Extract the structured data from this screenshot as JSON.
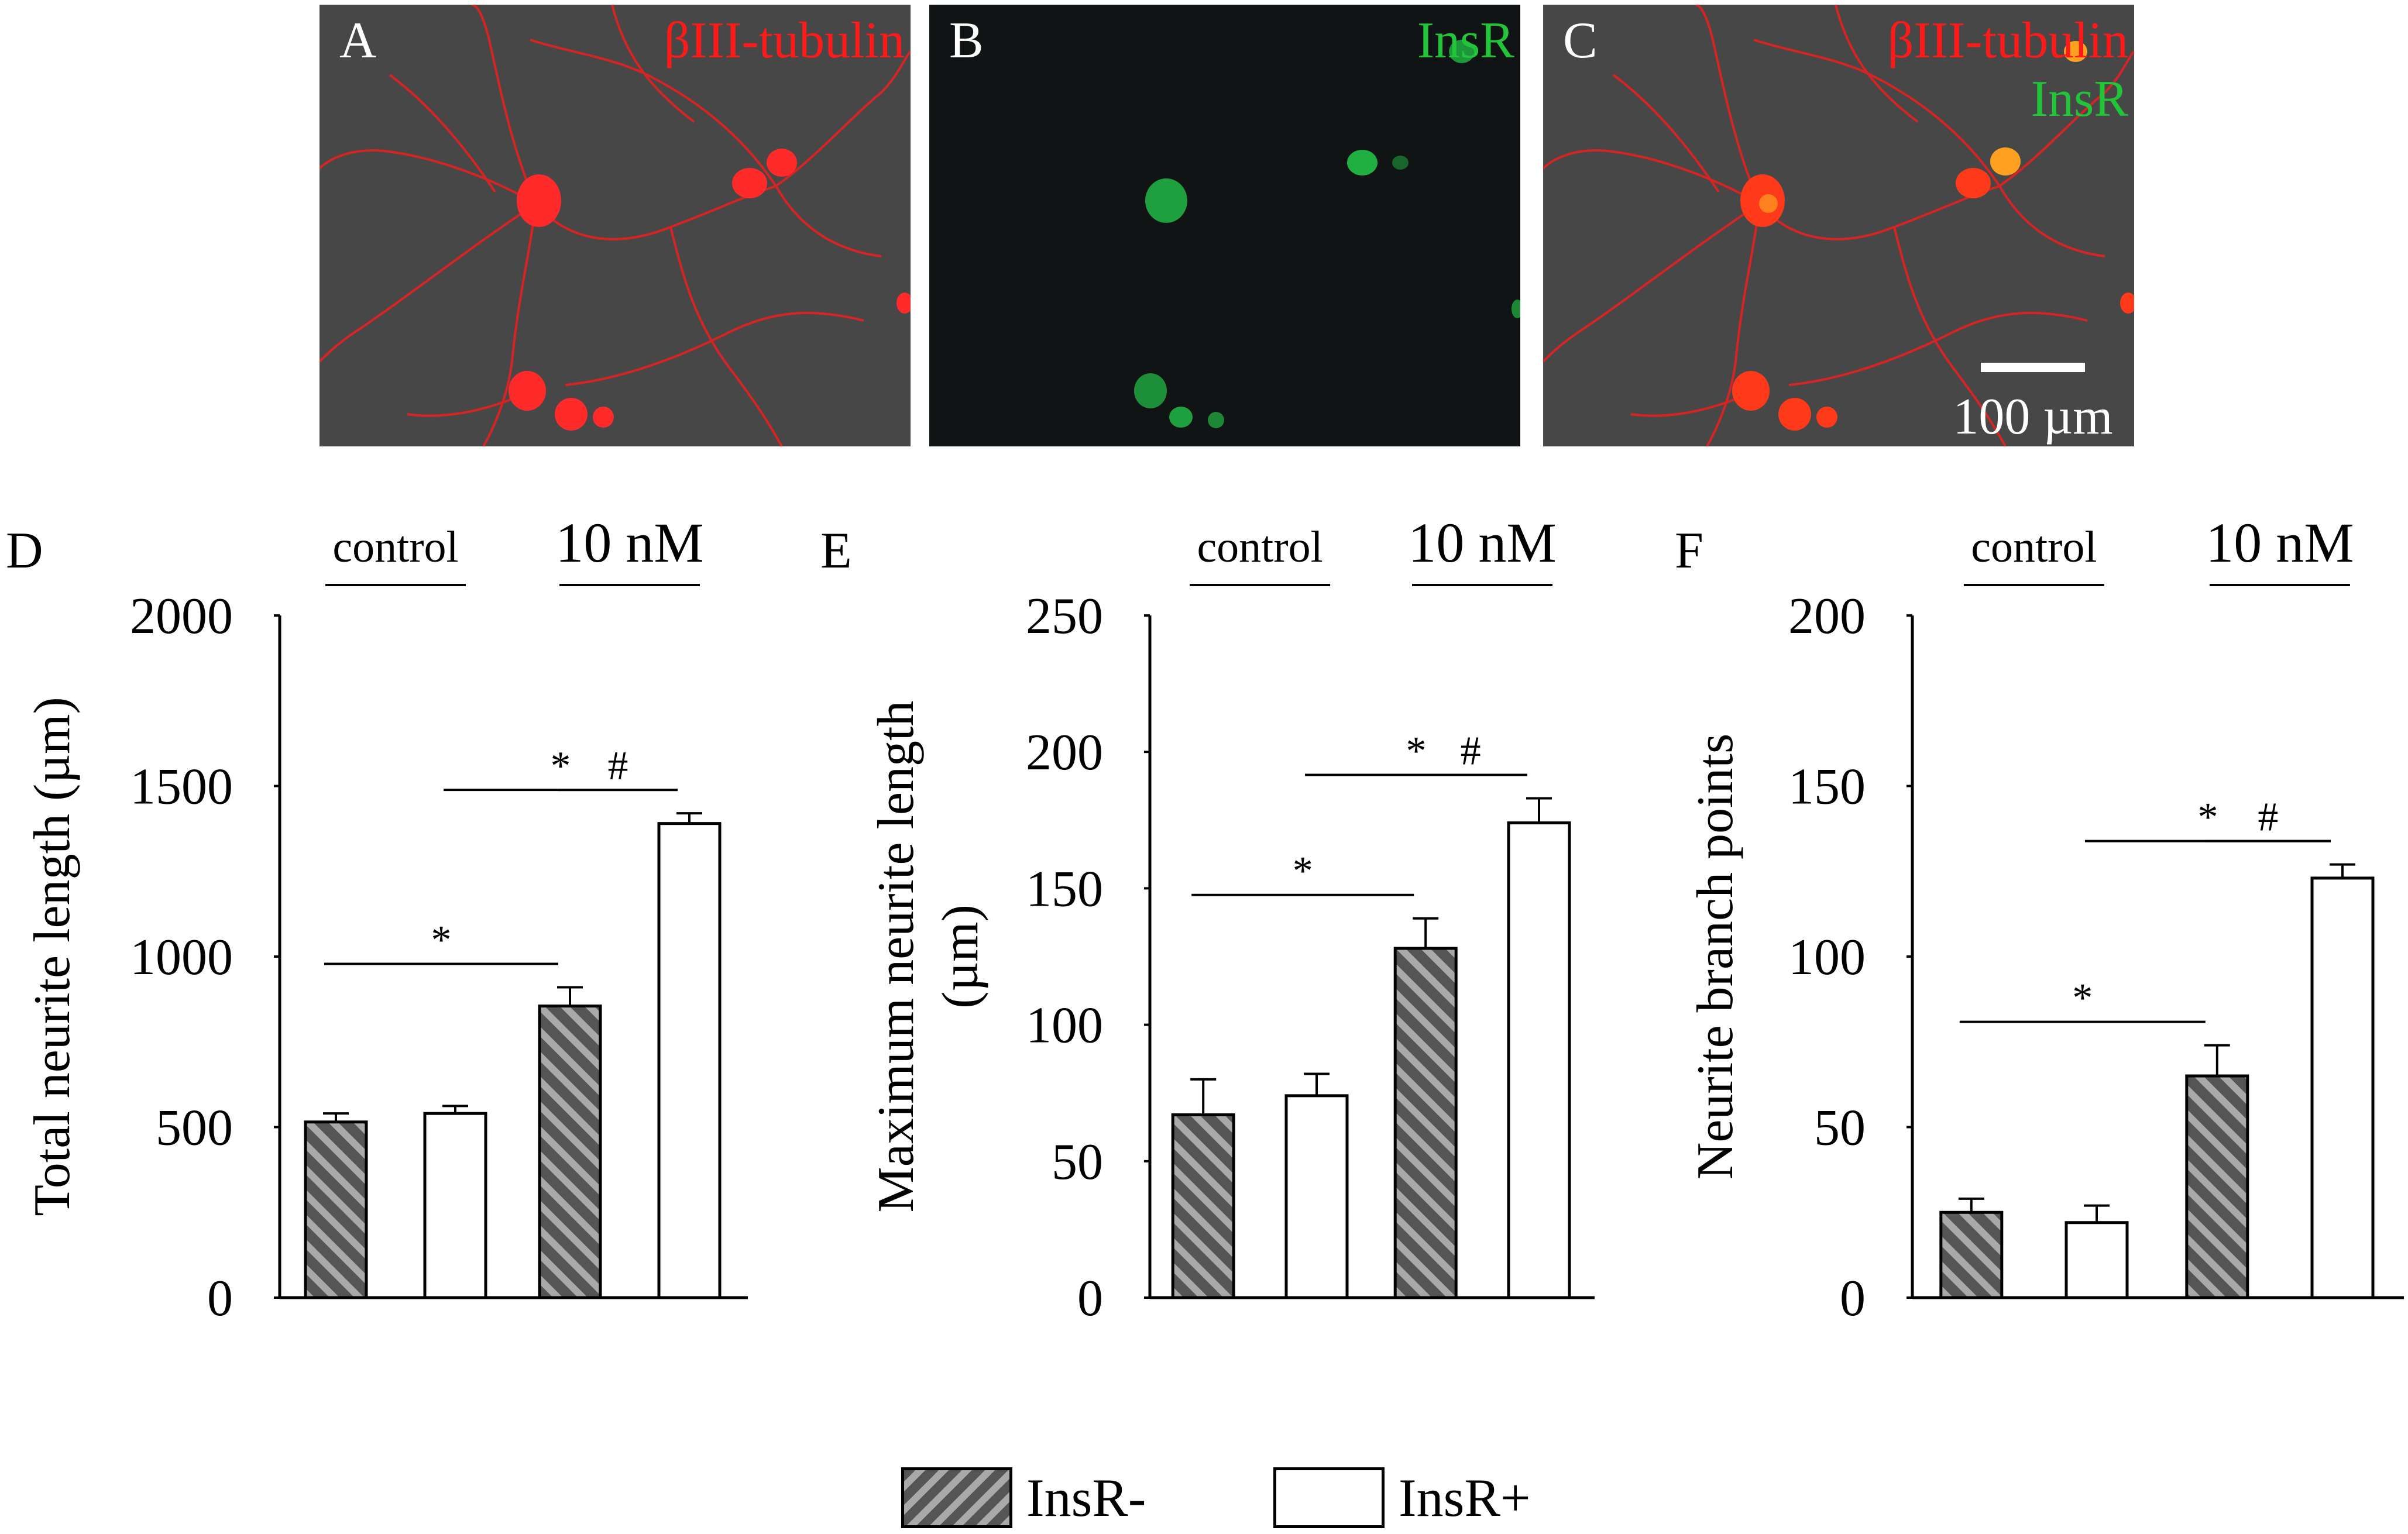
{
  "images": [
    {
      "panel": "A",
      "labels": [
        {
          "text": "βIII-tubulin",
          "color": "#ff1a1a"
        }
      ]
    },
    {
      "panel": "B",
      "labels": [
        {
          "text": "InsR",
          "color": "#22c43a"
        }
      ]
    },
    {
      "panel": "C",
      "labels": [
        {
          "text": "βIII-tubulin",
          "color": "#ff1a1a"
        },
        {
          "text": "InsR",
          "color": "#22c43a"
        }
      ],
      "scale_bar": "100 µm"
    }
  ],
  "legend": [
    {
      "label": "InsR-",
      "style": "hatched"
    },
    {
      "label": "InsR+",
      "style": "open"
    }
  ],
  "chart_data": [
    {
      "panel": "D",
      "type": "bar",
      "ylabel": "Total neurite length (µm)",
      "ylim": [
        0,
        2000
      ],
      "yticks": [
        0,
        500,
        1000,
        1500,
        2000
      ],
      "groups": [
        "control",
        "10 nM"
      ],
      "bars": [
        {
          "group": "control",
          "series": "InsR-",
          "value": 515,
          "error": 25
        },
        {
          "group": "control",
          "series": "InsR+",
          "value": 540,
          "error": 22
        },
        {
          "group": "10 nM",
          "series": "InsR-",
          "value": 855,
          "error": 55
        },
        {
          "group": "10 nM",
          "series": "InsR+",
          "value": 1390,
          "error": 30
        }
      ],
      "significance": [
        {
          "from": 0,
          "to": 2,
          "symbol": "*"
        },
        {
          "from": 1,
          "to": 3,
          "symbol": "*"
        },
        {
          "from": 2,
          "to": 3,
          "symbol": "#"
        }
      ]
    },
    {
      "panel": "E",
      "type": "bar",
      "ylabel": "Maximum neurite  length (µm)",
      "ylim": [
        0,
        250
      ],
      "yticks": [
        0,
        50,
        100,
        150,
        200,
        250
      ],
      "groups": [
        "control",
        "10 nM"
      ],
      "bars": [
        {
          "group": "control",
          "series": "InsR-",
          "value": 67,
          "error": 13
        },
        {
          "group": "control",
          "series": "InsR+",
          "value": 74,
          "error": 8
        },
        {
          "group": "10 nM",
          "series": "InsR-",
          "value": 128,
          "error": 11
        },
        {
          "group": "10 nM",
          "series": "InsR+",
          "value": 174,
          "error": 9
        }
      ],
      "significance": [
        {
          "from": 0,
          "to": 2,
          "symbol": "*"
        },
        {
          "from": 1,
          "to": 3,
          "symbol": "*"
        },
        {
          "from": 2,
          "to": 3,
          "symbol": "#"
        }
      ]
    },
    {
      "panel": "F",
      "type": "bar",
      "ylabel": "Neurite branch points",
      "ylim": [
        0,
        200
      ],
      "yticks": [
        0,
        50,
        100,
        150,
        200
      ],
      "groups": [
        "control",
        "10 nM"
      ],
      "bars": [
        {
          "group": "control",
          "series": "InsR-",
          "value": 25,
          "error": 4
        },
        {
          "group": "control",
          "series": "InsR+",
          "value": 22,
          "error": 5
        },
        {
          "group": "10 nM",
          "series": "InsR-",
          "value": 65,
          "error": 9
        },
        {
          "group": "10 nM",
          "series": "InsR+",
          "value": 123,
          "error": 4
        }
      ],
      "significance": [
        {
          "from": 0,
          "to": 2,
          "symbol": "*"
        },
        {
          "from": 1,
          "to": 3,
          "symbol": "*"
        },
        {
          "from": 2,
          "to": 3,
          "symbol": "#"
        }
      ]
    }
  ]
}
